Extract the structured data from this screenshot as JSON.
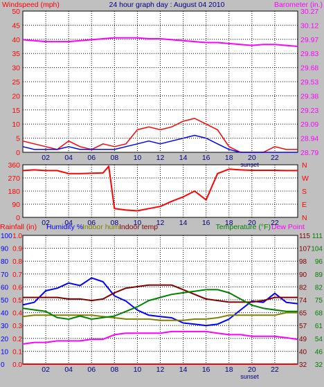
{
  "title": "24 hour graph day : August 04 2010",
  "colors": {
    "bg": "#c0c0c0",
    "plot": "#ffffff",
    "frame": "#000000",
    "wind": "#ff0000",
    "gust": "#0000ff",
    "baro": "#ff00ff",
    "dir": "#ff0000",
    "rain": "#ff0000",
    "hum": "#0000ff",
    "inhum": "#808000",
    "intemp": "#800000",
    "temp": "#008000",
    "dew": "#ff00ff",
    "sunset": "#000080"
  },
  "hour_labels": [
    "02",
    "04",
    "06",
    "08",
    "10",
    "12",
    "14",
    "16",
    "18",
    "20",
    "22"
  ],
  "sunset_label": "sunset",
  "chart_data": [
    {
      "type": "line",
      "title": "24 hour graph day : August 04 2010",
      "ylabel_left": "Windspeed (mph)",
      "ylabel_right": "Barometer (in.)",
      "left_ticks": [
        "0",
        "5",
        "10",
        "15",
        "20",
        "25",
        "30",
        "35",
        "40",
        "45",
        "50"
      ],
      "right_ticks": [
        "28.79",
        "28.94",
        "29.09",
        "29.23",
        "29.38",
        "29.53",
        "29.68",
        "29.83",
        "29.97",
        "30.12",
        "30.27"
      ],
      "ylim_left": [
        0,
        50
      ],
      "ylim_right": [
        28.79,
        30.27
      ],
      "x": [
        0,
        1,
        2,
        3,
        4,
        5,
        6,
        7,
        8,
        9,
        10,
        11,
        12,
        13,
        14,
        15,
        16,
        17,
        18,
        19,
        20,
        21,
        22,
        23,
        24
      ],
      "series": [
        {
          "name": "Barometer (in.)",
          "axis": "right",
          "values": [
            29.97,
            29.96,
            29.95,
            29.95,
            29.95,
            29.96,
            29.97,
            29.98,
            29.99,
            29.99,
            29.99,
            29.98,
            29.98,
            29.97,
            29.96,
            29.95,
            29.94,
            29.94,
            29.93,
            29.92,
            29.91,
            29.92,
            29.92,
            29.91,
            29.9
          ]
        },
        {
          "name": "Windspeed (mph)",
          "axis": "left",
          "values": [
            4,
            3,
            2,
            1,
            4,
            2,
            1,
            3,
            2,
            3,
            8,
            9,
            8,
            9,
            11,
            12,
            10,
            8,
            2,
            0,
            0,
            0,
            2,
            1,
            1
          ]
        },
        {
          "name": "Wind gust (mph)",
          "axis": "left",
          "values": [
            2,
            1,
            1,
            1,
            2,
            1,
            1,
            1,
            1,
            2,
            3,
            4,
            3,
            4,
            5,
            6,
            5,
            3,
            1,
            0,
            0,
            0,
            0,
            0,
            0
          ]
        }
      ]
    },
    {
      "type": "line",
      "left_ticks": [
        "0",
        "90",
        "180",
        "270",
        "360"
      ],
      "right_ticks": [
        "N",
        "E",
        "S",
        "W",
        "N"
      ],
      "ylim": [
        0,
        360
      ],
      "x": [
        0,
        1,
        2,
        3,
        4,
        5,
        6,
        7,
        7.5,
        8,
        9,
        10,
        11,
        12,
        13,
        14,
        15,
        16,
        17,
        18,
        19,
        20,
        21,
        22,
        23,
        24
      ],
      "series": [
        {
          "name": "Wind direction",
          "values": [
            320,
            325,
            320,
            320,
            300,
            300,
            302,
            304,
            350,
            60,
            50,
            45,
            60,
            75,
            110,
            140,
            180,
            120,
            300,
            330,
            325,
            322,
            322,
            322,
            320,
            320
          ]
        }
      ]
    },
    {
      "type": "line",
      "labels": [
        "Rainfall (in)",
        "Humidity %",
        "Indoor hum",
        "Indoor temp",
        "Temperature (°F)",
        "Dew Point"
      ],
      "left_ticks_rain": [
        "0.0",
        "0.1",
        "0.2",
        "0.3",
        "0.4",
        "0.5",
        "0.6",
        "0.7",
        "0.8",
        "0.9",
        "1.0"
      ],
      "left_ticks_pct": [
        "0",
        "10",
        "20",
        "30",
        "40",
        "50",
        "60",
        "70",
        "80",
        "90",
        "100"
      ],
      "right_ticks_a": [
        "32",
        "40",
        "49",
        "57",
        "65",
        "74",
        "82",
        "90",
        "98",
        "107",
        "115"
      ],
      "right_ticks_b": [
        "32",
        "46",
        "54",
        "61",
        "68",
        "75",
        "82",
        "89",
        "96",
        "104",
        "111"
      ],
      "ylim_pct": [
        0,
        100
      ],
      "ylim_temp": [
        32,
        115
      ],
      "x": [
        0,
        1,
        2,
        3,
        4,
        5,
        6,
        7,
        8,
        9,
        10,
        11,
        12,
        13,
        14,
        15,
        16,
        17,
        18,
        19,
        20,
        21,
        22,
        23,
        24
      ],
      "series": [
        {
          "name": "Rainfall (in)",
          "axis": "pct",
          "values": [
            0,
            0,
            0,
            0,
            0,
            0,
            0,
            0,
            0,
            0,
            0,
            0,
            0,
            0,
            0,
            0,
            0,
            0,
            0,
            0,
            0,
            0,
            0,
            0,
            0
          ]
        },
        {
          "name": "Humidity %",
          "axis": "pct",
          "values": [
            46,
            48,
            57,
            59,
            63,
            61,
            67,
            64,
            53,
            49,
            42,
            38,
            37,
            36,
            32,
            31,
            30,
            31,
            35,
            42,
            49,
            48,
            55,
            48,
            47
          ]
        },
        {
          "name": "Indoor hum",
          "axis": "pct",
          "values": [
            37,
            38,
            38,
            38,
            38,
            38,
            38,
            37,
            36,
            35,
            35,
            35,
            34,
            34,
            34,
            35,
            35,
            36,
            38,
            38,
            38,
            38,
            38,
            40,
            40
          ]
        },
        {
          "name": "Indoor temp",
          "axis": "temp",
          "values": [
            75,
            75,
            75,
            75,
            74,
            74,
            73,
            74,
            78,
            81,
            82,
            83,
            83,
            83,
            80,
            77,
            74,
            73,
            72,
            72,
            72,
            73,
            75,
            75,
            75
          ]
        },
        {
          "name": "Temperature (°F)",
          "axis": "temp",
          "values": [
            68,
            67,
            66,
            62,
            61,
            63,
            61,
            62,
            63,
            66,
            69,
            73,
            75,
            77,
            78,
            79,
            80,
            80,
            78,
            74,
            70,
            68,
            67,
            66,
            66
          ]
        },
        {
          "name": "Dew Point",
          "axis": "temp",
          "values": [
            45,
            46,
            46,
            47,
            47,
            47,
            48,
            48,
            51,
            52,
            52,
            52,
            52,
            53,
            53,
            53,
            53,
            52,
            51,
            51,
            50,
            50,
            50,
            49,
            48
          ]
        }
      ]
    }
  ]
}
